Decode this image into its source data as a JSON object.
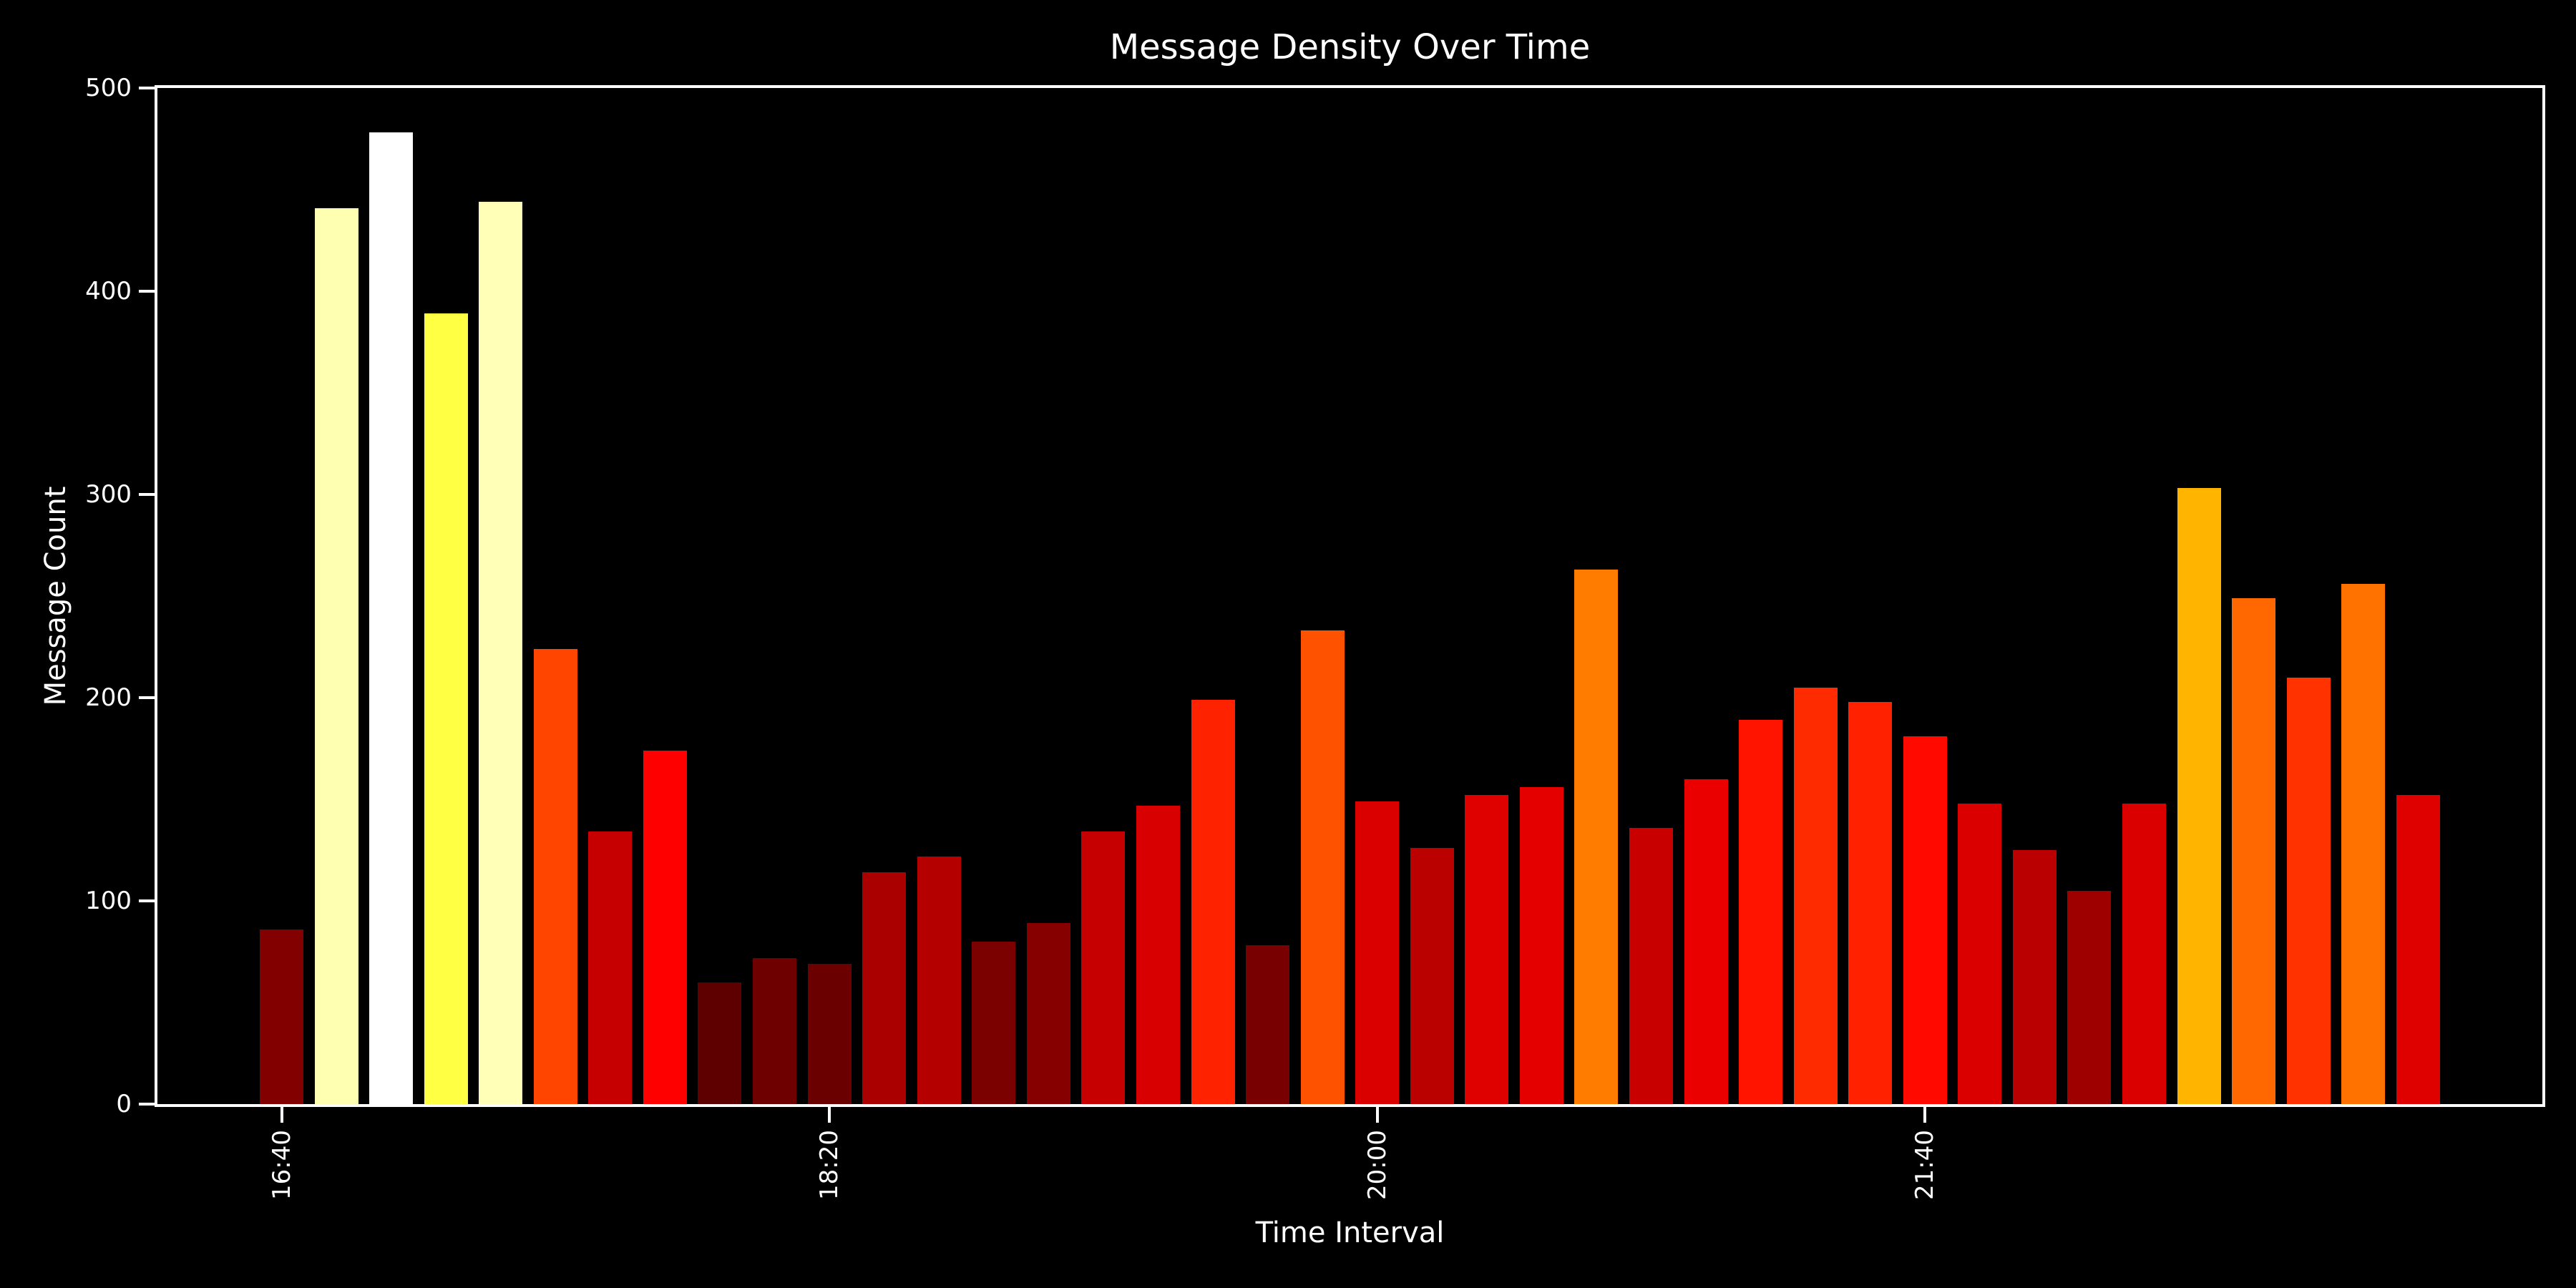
{
  "figure": {
    "background_color": "#000000",
    "text_color": "#ffffff",
    "axis_color": "#ffffff"
  },
  "chart_data": {
    "type": "bar",
    "title": "Message Density Over Time",
    "xlabel": "Time Interval",
    "ylabel": "Message Count",
    "ylim": [
      0,
      500
    ],
    "yticks": [
      0,
      100,
      200,
      300,
      400,
      500
    ],
    "xticks": [
      {
        "label": "16:40",
        "index": 0
      },
      {
        "label": "18:20",
        "index": 10
      },
      {
        "label": "20:00",
        "index": 20
      },
      {
        "label": "21:40",
        "index": 30
      }
    ],
    "values": [
      86,
      441,
      478,
      389,
      444,
      224,
      134,
      174,
      60,
      72,
      69,
      114,
      122,
      80,
      89,
      134,
      147,
      199,
      78,
      233,
      149,
      126,
      152,
      156,
      263,
      136,
      160,
      189,
      205,
      198,
      181,
      148,
      125,
      105,
      148,
      303,
      249,
      210,
      256,
      152
    ],
    "colormap": "hot",
    "color_norm_min": 0,
    "color_norm_max": 478,
    "grid": false,
    "legend": null
  }
}
